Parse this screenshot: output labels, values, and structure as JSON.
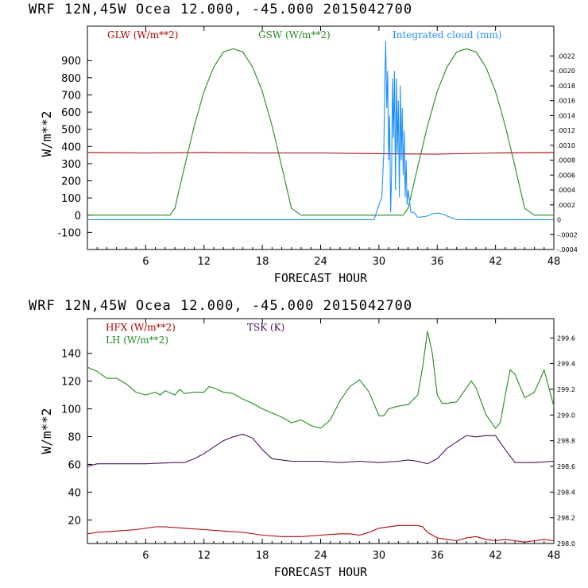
{
  "colors": {
    "red": "#b00000",
    "green": "#228b22",
    "blue": "#1e90ff",
    "purple": "#4b0d5e",
    "axis": "#000000"
  },
  "chart_data": [
    {
      "type": "line",
      "title": "WRF   12N,45W Ocea  12.000, -45.000  2015042700",
      "xlabel": "FORECAST HOUR",
      "ylabel": "W/m**2",
      "xlim": [
        0,
        48
      ],
      "ylim": [
        -200,
        1100
      ],
      "x_ticks": [
        "6",
        "12",
        "18",
        "24",
        "30",
        "36",
        "42",
        "48"
      ],
      "y_ticks": [
        "-100",
        "0",
        "100",
        "200",
        "300",
        "400",
        "500",
        "600",
        "700",
        "800",
        "900"
      ],
      "right_ylim": [
        -0.0004,
        0.0026
      ],
      "right_ticks": [
        "-.0004",
        "-.0002",
        "0",
        ".0002",
        ".0004",
        ".0006",
        ".0008",
        ".0010",
        ".0012",
        ".0014",
        ".0016",
        ".0018",
        ".0020",
        ".0022"
      ],
      "series": [
        {
          "name": "GLW (W/m**2)",
          "color": "red",
          "axis": "left",
          "x": [
            0,
            6,
            12,
            18,
            24,
            30,
            36,
            42,
            48
          ],
          "values": [
            365,
            362,
            365,
            362,
            362,
            358,
            355,
            362,
            365
          ]
        },
        {
          "name": "GSW (W/m**2)",
          "color": "green",
          "axis": "left",
          "x": [
            0,
            8.5,
            9,
            10,
            11,
            12,
            13,
            14,
            15,
            16,
            17,
            18,
            19,
            20,
            21,
            22,
            32.5,
            33,
            34,
            35,
            36,
            37,
            38,
            39,
            40,
            41,
            42,
            43,
            44,
            45,
            46,
            48
          ],
          "values": [
            0,
            0,
            40,
            283,
            520,
            720,
            862,
            950,
            968,
            950,
            862,
            720,
            520,
            283,
            40,
            0,
            0,
            40,
            283,
            520,
            720,
            862,
            950,
            968,
            950,
            862,
            720,
            520,
            283,
            40,
            0,
            0
          ]
        },
        {
          "name": "Integrated cloud (mm)",
          "color": "blue",
          "axis": "right",
          "x": [
            0,
            29.5,
            30,
            30.3,
            30.5,
            30.6,
            30.7,
            30.8,
            30.9,
            31.0,
            31.1,
            31.2,
            31.3,
            31.4,
            31.5,
            31.6,
            31.7,
            31.8,
            31.9,
            32.0,
            32.1,
            32.2,
            32.3,
            32.4,
            32.5,
            32.6,
            32.7,
            32.8,
            32.9,
            33.0,
            33.3,
            33.6,
            34,
            35,
            35.5,
            36,
            36.5,
            37,
            38,
            48
          ],
          "values": [
            0,
            0,
            0.0002,
            0.0003,
            0.0009,
            0.0018,
            0.0024,
            0.0015,
            0.002,
            0.0008,
            0.0014,
            0.0001,
            0.0006,
            0.0019,
            0.0011,
            0.002,
            0.0004,
            0.0019,
            0.0009,
            0.0016,
            0.0003,
            0.0018,
            0.0008,
            0.0015,
            0.0006,
            0.0012,
            0.0003,
            0.0008,
            0.0002,
            0.0004,
            0.0001,
            0.0001,
            3e-05,
            5e-05,
            8e-05,
            9e-05,
            8e-05,
            5e-05,
            0,
            0
          ]
        }
      ]
    },
    {
      "type": "line",
      "title": "WRF   12N,45W Ocea  12.000, -45.000  2015042700",
      "xlabel": "FORECAST HOUR",
      "ylabel": "W/m**2",
      "xlim": [
        0,
        48
      ],
      "ylim": [
        3,
        165
      ],
      "x_ticks": [
        "6",
        "12",
        "18",
        "24",
        "30",
        "36",
        "42",
        "48"
      ],
      "y_ticks": [
        "20",
        "40",
        "60",
        "80",
        "100",
        "120",
        "140"
      ],
      "right_ylim": [
        298.0,
        299.75
      ],
      "right_ticks": [
        "298.0",
        "298.2",
        "298.4",
        "298.6",
        "298.8",
        "299.0",
        "299.2",
        "299.4",
        "299.6"
      ],
      "series": [
        {
          "name": "HFX (W/m**2)",
          "color": "red",
          "axis": "left",
          "x": [
            0,
            1,
            3,
            5,
            7,
            8,
            10,
            12,
            14,
            16,
            18,
            20,
            22,
            24,
            26,
            27,
            28,
            29,
            30,
            32,
            34,
            34.5,
            35,
            36,
            37,
            38,
            39,
            40,
            41,
            42,
            43,
            44,
            45,
            46,
            47,
            48
          ],
          "values": [
            10,
            11,
            12,
            13,
            15,
            15,
            14,
            13,
            12,
            11,
            9,
            8,
            8,
            9,
            10,
            10,
            9,
            11,
            14,
            16,
            16,
            15,
            11,
            7,
            6,
            5,
            7,
            8,
            6,
            5,
            6,
            5,
            4,
            5,
            6,
            5
          ]
        },
        {
          "name": "LH (W/m**2)",
          "color": "green",
          "axis": "left",
          "x": [
            0,
            1,
            2,
            3,
            4,
            5,
            6,
            7,
            7.5,
            8,
            9,
            9.5,
            10,
            11,
            12,
            12.5,
            13,
            14,
            15,
            16,
            17,
            18,
            19,
            20,
            21,
            22,
            23,
            24,
            25,
            26,
            27,
            28,
            29,
            30,
            30.5,
            31,
            32,
            33,
            34,
            34.5,
            35,
            35.5,
            36,
            36.5,
            37,
            38,
            39,
            39.5,
            40,
            41,
            42,
            42.5,
            43,
            43.5,
            44,
            45,
            46,
            46.5,
            47,
            48
          ],
          "values": [
            130,
            127,
            122,
            122,
            118,
            112,
            110,
            112,
            110,
            113,
            110,
            114,
            111,
            112,
            112,
            116,
            115,
            112,
            111,
            107,
            104,
            100,
            97,
            94,
            90,
            92,
            88,
            86,
            92,
            106,
            116,
            121,
            112,
            95,
            95,
            100,
            102,
            103,
            110,
            130,
            156,
            140,
            110,
            104,
            104,
            105,
            115,
            120,
            115,
            96,
            86,
            90,
            110,
            128,
            125,
            108,
            112,
            120,
            128,
            102
          ]
        },
        {
          "name": "TSK (K)",
          "color": "purple",
          "axis": "right",
          "x": [
            0,
            1,
            3,
            6,
            9,
            10,
            11,
            12,
            13,
            14,
            15,
            16,
            17,
            18,
            19,
            20,
            21,
            22,
            24,
            26,
            28,
            30,
            32,
            33,
            34,
            35,
            36,
            37,
            38,
            39,
            40,
            41,
            42,
            43,
            44,
            45,
            46,
            48
          ],
          "values": [
            298.6,
            298.62,
            298.62,
            298.62,
            298.63,
            298.63,
            298.66,
            298.7,
            298.75,
            298.8,
            298.83,
            298.85,
            298.82,
            298.73,
            298.66,
            298.65,
            298.64,
            298.64,
            298.64,
            298.63,
            298.64,
            298.63,
            298.64,
            298.65,
            298.64,
            298.62,
            298.66,
            298.74,
            298.79,
            298.84,
            298.83,
            298.84,
            298.84,
            298.73,
            298.63,
            298.63,
            298.63,
            298.64
          ]
        }
      ]
    }
  ]
}
